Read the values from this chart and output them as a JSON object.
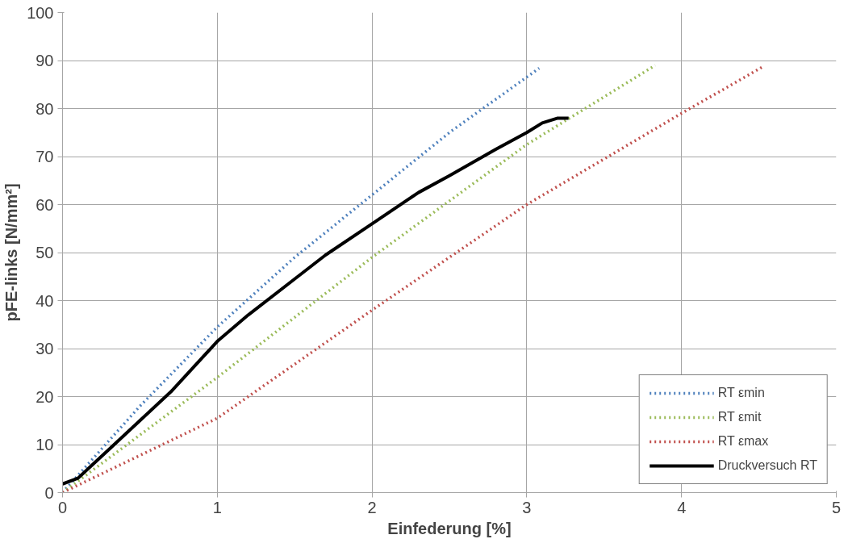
{
  "chart_data": {
    "type": "line",
    "xlabel": "Einfederung [%]",
    "ylabel": "pFE-links [N/mm²]",
    "xlim": [
      0,
      5
    ],
    "xticks": [
      0,
      1,
      2,
      3,
      4,
      5
    ],
    "ylim": [
      0,
      100
    ],
    "yticks": [
      0,
      10,
      20,
      30,
      40,
      50,
      60,
      70,
      80,
      90,
      100
    ],
    "grid": true,
    "legend": "bottom right",
    "marker": "none",
    "series": [
      {
        "name": "RT εmin",
        "color": "#4f81bd",
        "line_style": "dotted",
        "x": [
          0,
          0.5,
          1,
          1.5,
          2,
          2.5,
          3.08
        ],
        "values": [
          0,
          18,
          34.5,
          49,
          62,
          75,
          88.4
        ]
      },
      {
        "name": "RT εmit",
        "color": "#9bbb59",
        "line_style": "dotted",
        "x": [
          0,
          1,
          2,
          3,
          3.83
        ],
        "values": [
          0,
          24,
          49,
          72.5,
          89
        ]
      },
      {
        "name": "RT εmax",
        "color": "#c0504d",
        "line_style": "dotted",
        "x": [
          0,
          1,
          2,
          3,
          4,
          4.52
        ],
        "values": [
          0,
          15.5,
          38,
          60,
          79,
          88.6
        ]
      },
      {
        "name": "Druckversuch RT",
        "color": "#000000",
        "line_style": "solid",
        "x": [
          0,
          0.1,
          0.2,
          0.3,
          0.5,
          0.7,
          1,
          1.2,
          1.5,
          1.7,
          2,
          2.3,
          2.5,
          2.8,
          3,
          3.1,
          3.2,
          3.27
        ],
        "values": [
          1.8,
          3,
          6,
          9,
          15,
          21,
          31.5,
          37,
          44.5,
          49.5,
          56,
          62.5,
          66,
          71.5,
          75,
          77,
          78,
          78
        ]
      }
    ]
  }
}
